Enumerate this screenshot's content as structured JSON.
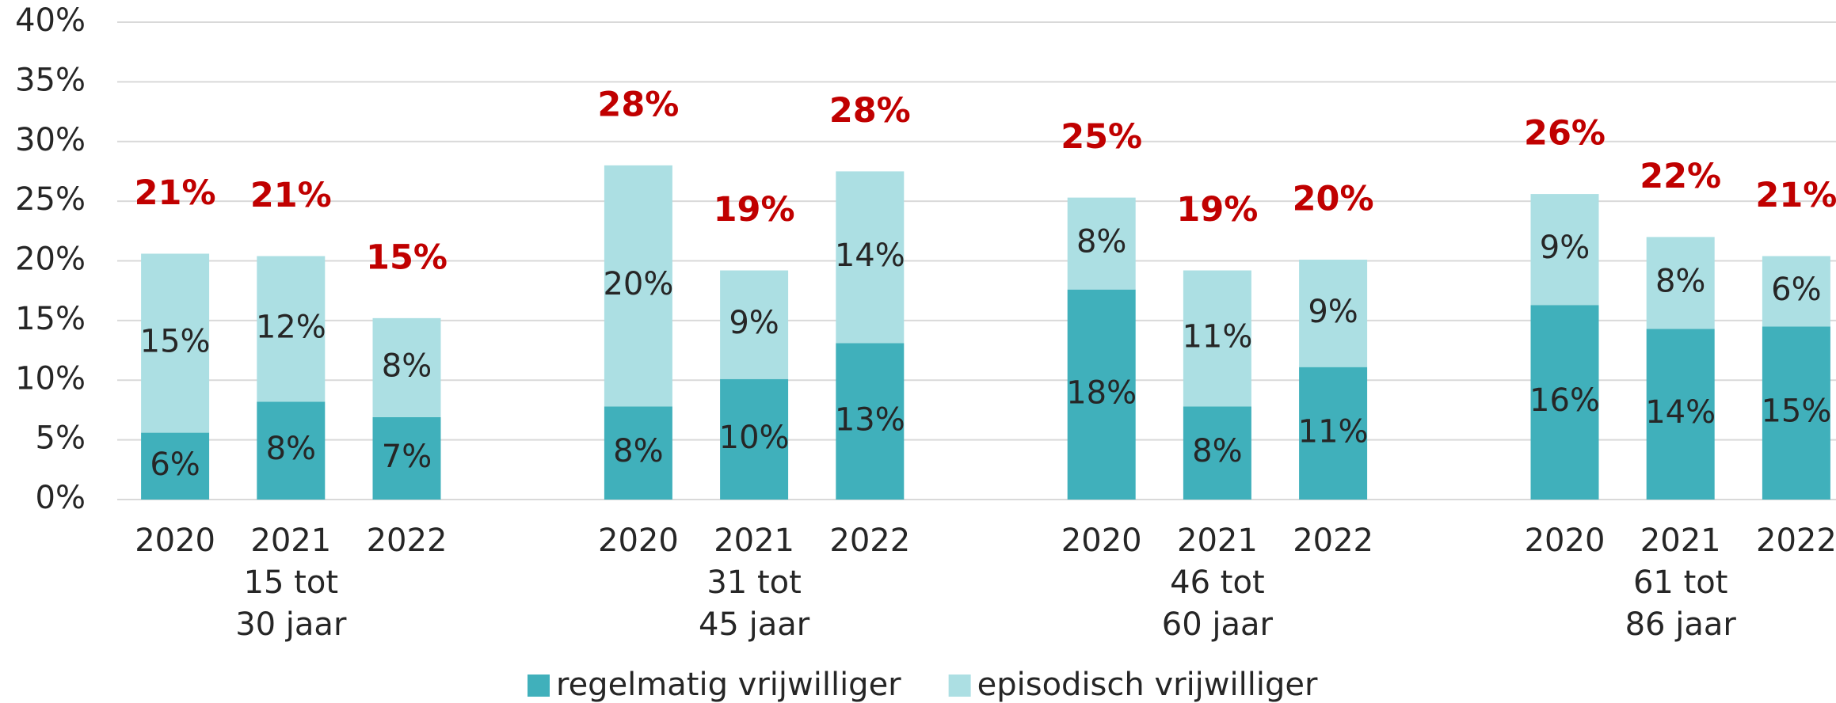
{
  "chart_data": {
    "type": "stacked_bar",
    "categories": [
      "2020",
      "2021",
      "2022",
      "2020",
      "2021",
      "2022",
      "2020",
      "2021",
      "2022",
      "2020",
      "2021",
      "2022"
    ],
    "groups": [
      {
        "lines": [
          "15 tot",
          "30 jaar"
        ],
        "size": 3
      },
      {
        "lines": [
          "31 tot",
          "45 jaar"
        ],
        "size": 3
      },
      {
        "lines": [
          "46 tot",
          "60 jaar"
        ],
        "size": 3
      },
      {
        "lines": [
          "61 tot",
          "86 jaar"
        ],
        "size": 3
      }
    ],
    "series": [
      {
        "name": "regelmatig vrijwilliger",
        "color": "#40b0bb",
        "values": [
          5.6,
          8.2,
          6.9,
          7.8,
          10.1,
          13.1,
          17.6,
          7.8,
          11.1,
          16.3,
          14.3,
          14.5
        ],
        "value_labels": [
          "6%",
          "8%",
          "7%",
          "8%",
          "10%",
          "13%",
          "18%",
          "8%",
          "11%",
          "16%",
          "14%",
          "15%"
        ]
      },
      {
        "name": "episodisch vrijwilliger",
        "color": "#acdfe3",
        "values": [
          15.0,
          12.2,
          8.3,
          20.2,
          9.1,
          14.4,
          7.7,
          11.4,
          9.0,
          9.3,
          7.7,
          5.9
        ],
        "value_labels": [
          "15%",
          "12%",
          "8%",
          "20%",
          "9%",
          "14%",
          "8%",
          "11%",
          "9%",
          "9%",
          "8%",
          "6%"
        ]
      }
    ],
    "total_labels": [
      "21%",
      "21%",
      "15%",
      "28%",
      "19%",
      "28%",
      "25%",
      "19%",
      "20%",
      "26%",
      "22%",
      "21%"
    ],
    "total_color": "#c00000",
    "ylim": [
      0,
      40
    ],
    "yticks": [
      {
        "value": 0,
        "label": "0%"
      },
      {
        "value": 5,
        "label": "5%"
      },
      {
        "value": 10,
        "label": "10%"
      },
      {
        "value": 15,
        "label": "15%"
      },
      {
        "value": 20,
        "label": "20%"
      },
      {
        "value": 25,
        "label": "25%"
      },
      {
        "value": 30,
        "label": "30%"
      },
      {
        "value": 35,
        "label": "35%"
      },
      {
        "value": 40,
        "label": "40%"
      }
    ],
    "grid": true,
    "legend": "bottom"
  }
}
